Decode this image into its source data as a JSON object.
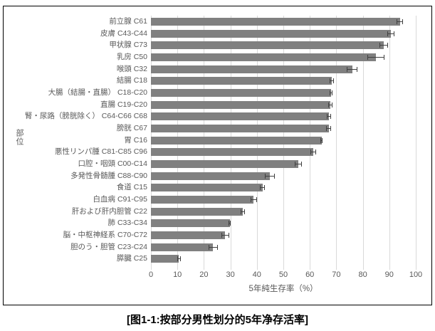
{
  "figure": {
    "caption": "[图1-1:按部分男性划分的5年净存活率]"
  },
  "colors": {
    "bar": "#808080",
    "gridline": "#d9d9d9",
    "error_bar": "#404040",
    "axis_text": "#595959",
    "border": "#000000"
  },
  "chart_data": {
    "type": "bar",
    "orientation": "horizontal",
    "title": "",
    "xlabel": "5年純生存率（%）",
    "ylabel": "部位",
    "xlim": [
      0,
      100
    ],
    "xticks": [
      0,
      10,
      20,
      30,
      40,
      50,
      60,
      70,
      80,
      90,
      100
    ],
    "grid": true,
    "error_bars": true,
    "categories": [
      "前立腺 C61",
      "皮膚 C43-C44",
      "甲状腺 C73",
      "乳房 C50",
      "喉頭 C32",
      "結腸 C18",
      "大腸（結腸・直腸） C18-C20",
      "直腸 C19-C20",
      "腎・尿路（膀胱除く） C64-C66 C68",
      "膀胱 C67",
      "胃 C16",
      "悪性リンパ腫 C81-C85 C96",
      "口腔・咽頭 C00-C14",
      "多発性骨髄腫 C88-C90",
      "食道 C15",
      "白血病 C91-C95",
      "肝および肝内胆管 C22",
      "肺 C33-C34",
      "脳・中枢神経系 C70-C72",
      "胆のう・胆管 C23-C24",
      "膵臓 C25"
    ],
    "values": [
      94.0,
      90.6,
      87.9,
      85.0,
      76.0,
      68.2,
      68.0,
      67.8,
      67.3,
      67.1,
      64.4,
      61.3,
      55.7,
      44.9,
      42.1,
      38.8,
      34.7,
      29.8,
      28.0,
      23.5,
      10.6
    ],
    "errors": [
      1.2,
      1.4,
      1.5,
      3.3,
      2.0,
      0.8,
      0.5,
      0.8,
      0.8,
      1.0,
      0.4,
      1.0,
      1.3,
      1.9,
      1.0,
      1.3,
      0.8,
      0.4,
      1.5,
      1.8,
      0.7
    ]
  }
}
